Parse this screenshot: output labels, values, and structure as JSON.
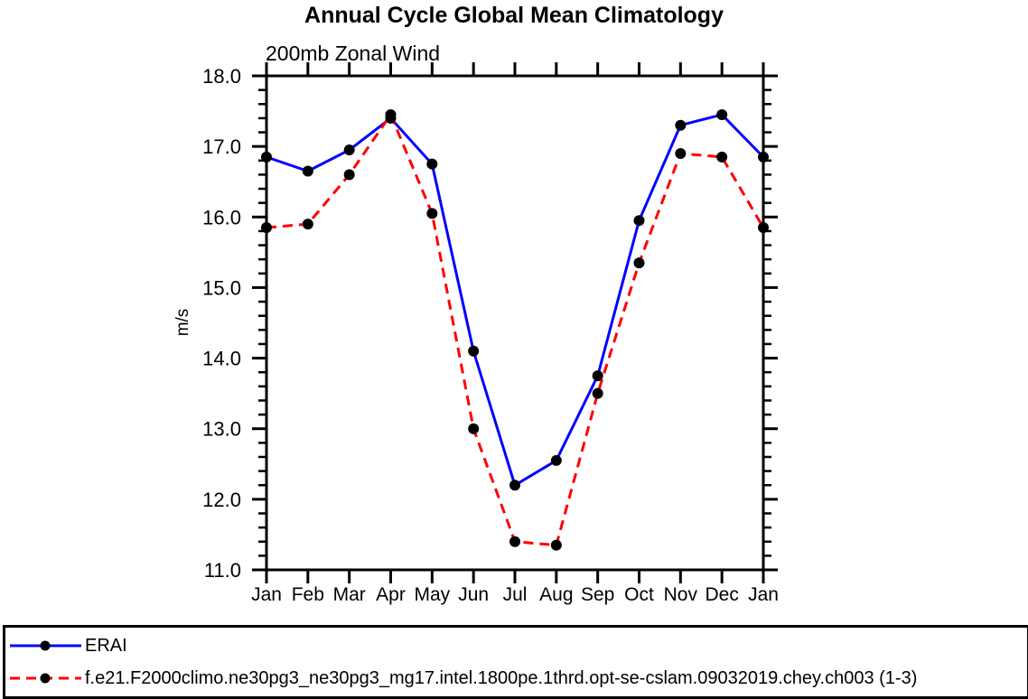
{
  "chart_data": {
    "type": "line",
    "title": "Annual Cycle Global Mean Climatology",
    "subtitle": "200mb Zonal Wind",
    "ylabel": "m/s",
    "xlabel": "",
    "categories": [
      "Jan",
      "Feb",
      "Mar",
      "Apr",
      "May",
      "Jun",
      "Jul",
      "Aug",
      "Sep",
      "Oct",
      "Nov",
      "Dec",
      "Jan"
    ],
    "series": [
      {
        "name": "ERAI",
        "color": "#0000ff",
        "line_style": "solid",
        "marker": "filled-circle",
        "marker_color": "#000000",
        "values": [
          16.85,
          16.65,
          16.95,
          17.4,
          16.75,
          14.1,
          12.2,
          12.55,
          13.75,
          15.95,
          17.3,
          17.45,
          16.85
        ]
      },
      {
        "name": "f.e21.F2000climo.ne30pg3_ne30pg3_mg17.intel.1800pe.1thrd.opt-se-cslam.09032019.chey.ch003 (1-3)",
        "color": "#ff0000",
        "line_style": "dashed",
        "marker": "filled-circle",
        "marker_color": "#000000",
        "values": [
          15.85,
          15.9,
          16.6,
          17.45,
          16.05,
          13.0,
          11.4,
          11.35,
          13.5,
          15.35,
          16.9,
          16.85,
          15.85
        ]
      }
    ],
    "ylim": [
      11.0,
      18.0
    ],
    "ytick_labels": [
      "11.0",
      "12.0",
      "13.0",
      "14.0",
      "15.0",
      "16.0",
      "17.0",
      "18.0"
    ],
    "ytick_major": 1.0,
    "ytick_minor": 0.2,
    "grid": false,
    "legend_position": "bottom-box",
    "frame_color": "#000000"
  }
}
